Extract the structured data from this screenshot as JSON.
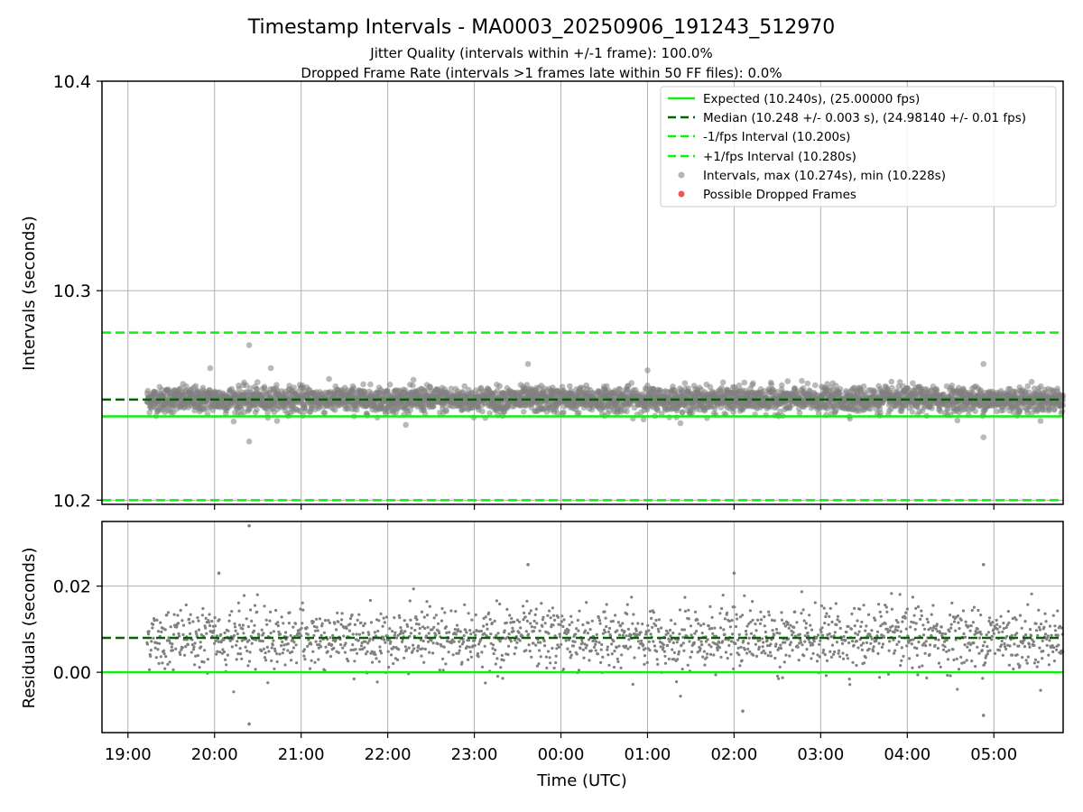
{
  "chart_data": [
    {
      "type": "scatter",
      "panel": "intervals",
      "title": "Timestamp Intervals - MA0003_20250906_191243_512970",
      "subtitle_lines": [
        "Jitter Quality (intervals within +/-1 frame): 100.0%",
        "Dropped Frame Rate (intervals >1 frames late within 50 FF files): 0.0%"
      ],
      "xlabel": "",
      "ylabel": "Intervals (seconds)",
      "xlim_hours": [
        18.7,
        29.8
      ],
      "ylim": [
        10.198,
        10.4
      ],
      "x_ticks": [
        {
          "value": 19,
          "label": "19:00"
        },
        {
          "value": 20,
          "label": "20:00"
        },
        {
          "value": 21,
          "label": "21:00"
        },
        {
          "value": 22,
          "label": "22:00"
        },
        {
          "value": 23,
          "label": "23:00"
        },
        {
          "value": 24,
          "label": "00:00"
        },
        {
          "value": 25,
          "label": "01:00"
        },
        {
          "value": 26,
          "label": "02:00"
        },
        {
          "value": 27,
          "label": "03:00"
        },
        {
          "value": 28,
          "label": "04:00"
        },
        {
          "value": 29,
          "label": "05:00"
        }
      ],
      "y_ticks": [
        {
          "value": 10.2,
          "label": "10.2"
        },
        {
          "value": 10.3,
          "label": "10.3"
        },
        {
          "value": 10.4,
          "label": "10.4"
        }
      ],
      "grid": true,
      "legend_position": "top-right",
      "reference_lines": [
        {
          "name": "Expected (10.240s), (25.00000 fps)",
          "y": 10.24,
          "style": "solid",
          "color": "#11ee11"
        },
        {
          "name": "Median (10.248 +/- 0.003 s), (24.98140 +/- 0.01 fps)",
          "y": 10.248,
          "style": "dashed",
          "color": "#006400"
        },
        {
          "name": "-1/fps Interval (10.200s)",
          "y": 10.2,
          "style": "dashed",
          "color": "#11ee11"
        },
        {
          "name": "+1/fps Interval (10.280s)",
          "y": 10.28,
          "style": "dashed",
          "color": "#11ee11"
        }
      ],
      "series": [
        {
          "name": "Intervals, max (10.274s), min (10.228s)",
          "color": "#808080",
          "x_start_hours": 19.22,
          "x_end_hours": 29.8,
          "median": 10.248,
          "std": 0.003,
          "max": 10.274,
          "min": 10.228,
          "highlighted_points": [
            {
              "x": 20.4,
              "y": 10.274
            },
            {
              "x": 20.4,
              "y": 10.228
            },
            {
              "x": 23.62,
              "y": 10.265
            },
            {
              "x": 28.88,
              "y": 10.265
            },
            {
              "x": 28.88,
              "y": 10.23
            },
            {
              "x": 19.95,
              "y": 10.263
            },
            {
              "x": 25.0,
              "y": 10.262
            },
            {
              "x": 20.65,
              "y": 10.263
            }
          ]
        },
        {
          "name": "Possible Dropped Frames",
          "color": "#ee5555",
          "points": []
        }
      ]
    },
    {
      "type": "scatter",
      "panel": "residuals",
      "xlabel": "Time (UTC)",
      "ylabel": "Residuals (seconds)",
      "ylim": [
        -0.014,
        0.035
      ],
      "y_ticks": [
        {
          "value": 0.0,
          "label": "0.00"
        },
        {
          "value": 0.02,
          "label": "0.02"
        }
      ],
      "reference_lines": [
        {
          "name": "zero",
          "y": 0.0,
          "style": "solid",
          "color": "#11ee11"
        },
        {
          "name": "median offset",
          "y": 0.008,
          "style": "dashed",
          "color": "#006400"
        }
      ],
      "series": [
        {
          "name": "Residuals",
          "color": "#808080",
          "offset": 0.008,
          "std": 0.004,
          "highlighted_points": [
            {
              "x": 20.4,
              "y": 0.034
            },
            {
              "x": 20.4,
              "y": -0.012
            },
            {
              "x": 23.62,
              "y": 0.025
            },
            {
              "x": 28.88,
              "y": 0.025
            },
            {
              "x": 28.88,
              "y": -0.01
            },
            {
              "x": 20.05,
              "y": 0.023
            },
            {
              "x": 26.0,
              "y": 0.023
            },
            {
              "x": 26.1,
              "y": -0.009
            }
          ]
        }
      ]
    }
  ]
}
